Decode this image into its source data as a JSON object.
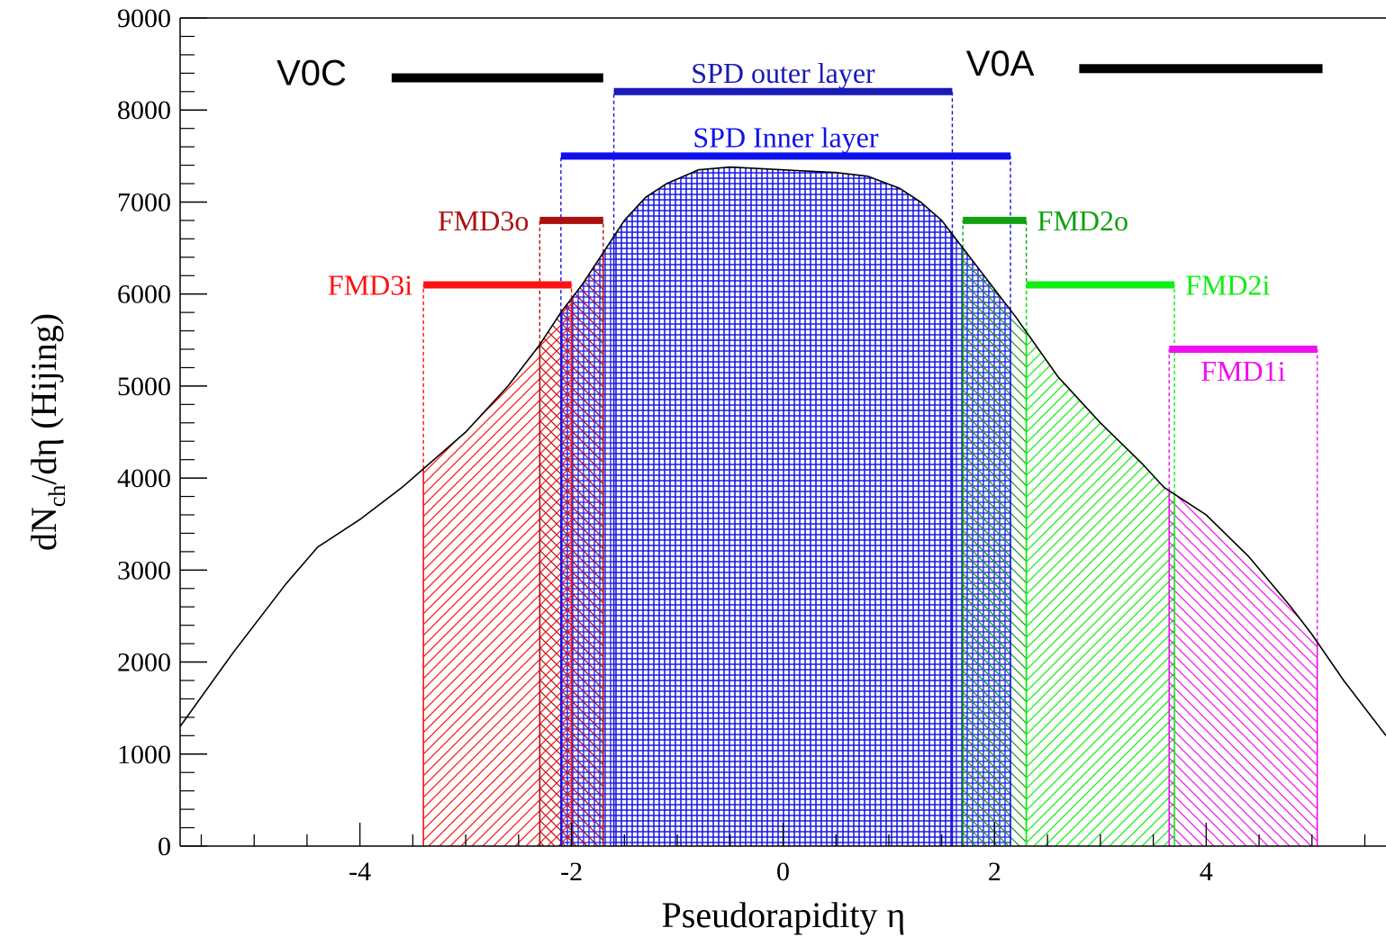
{
  "chart_data": {
    "type": "area",
    "xlabel": "Pseudorapidity η",
    "ylabel_main": "dN",
    "ylabel_sub": "ch",
    "ylabel_rest": "/dη (Hijing)",
    "xlim": [
      -5.7,
      5.7
    ],
    "ylim": [
      0,
      9000
    ],
    "x_ticks": [
      -4,
      -2,
      0,
      2,
      4
    ],
    "x_tick_labels": [
      "-4",
      "-2",
      "0",
      "2",
      "4"
    ],
    "y_ticks": [
      0,
      1000,
      2000,
      3000,
      4000,
      5000,
      6000,
      7000,
      8000,
      9000
    ],
    "y_tick_labels": [
      "0",
      "1000",
      "2000",
      "3000",
      "4000",
      "5000",
      "6000",
      "7000",
      "8000",
      "9000"
    ],
    "grid": false,
    "curve": {
      "x": [
        -5.7,
        -5.2,
        -4.7,
        -4.4,
        -4.0,
        -3.6,
        -3.4,
        -3.0,
        -2.6,
        -2.3,
        -2.1,
        -1.9,
        -1.7,
        -1.5,
        -1.3,
        -1.1,
        -0.8,
        -0.5,
        0.0,
        0.5,
        0.8,
        1.1,
        1.3,
        1.5,
        1.7,
        1.9,
        2.2,
        2.6,
        3.0,
        3.4,
        3.6,
        3.8,
        4.0,
        4.4,
        4.8,
        5.0,
        5.3,
        5.7
      ],
      "y": [
        1300,
        2100,
        2850,
        3250,
        3550,
        3900,
        4100,
        4500,
        5000,
        5450,
        5800,
        6100,
        6450,
        6800,
        7050,
        7200,
        7350,
        7380,
        7350,
        7320,
        7280,
        7150,
        7000,
        6800,
        6500,
        6200,
        5750,
        5100,
        4600,
        4150,
        3900,
        3750,
        3600,
        3150,
        2600,
        2300,
        1800,
        1200
      ]
    },
    "detectors": [
      {
        "name": "SPD outer layer",
        "eta_min": -1.6,
        "eta_max": 1.6,
        "y": 8200,
        "color": "#1a1ab8",
        "label_pos": "above",
        "fill": "grid"
      },
      {
        "name": "SPD Inner layer",
        "eta_min": -2.1,
        "eta_max": 2.15,
        "y": 7500,
        "color": "#1010ee",
        "label_pos": "above",
        "fill": "grid"
      },
      {
        "name": "FMD3o",
        "eta_min": -2.3,
        "eta_max": -1.7,
        "y": 6800,
        "color": "#aa1111",
        "label_pos": "left",
        "fill": "hatch-back"
      },
      {
        "name": "FMD3i",
        "eta_min": -3.4,
        "eta_max": -2.0,
        "y": 6100,
        "color": "#ff1111",
        "label_pos": "left",
        "fill": "hatch-fwd"
      },
      {
        "name": "FMD2o",
        "eta_min": 1.7,
        "eta_max": 2.3,
        "y": 6800,
        "color": "#11a011",
        "label_pos": "right",
        "fill": "hatch-back"
      },
      {
        "name": "FMD2i",
        "eta_min": 2.3,
        "eta_max": 3.7,
        "y": 6100,
        "color": "#11ee11",
        "label_pos": "right",
        "fill": "hatch-fwd"
      },
      {
        "name": "FMD1i",
        "eta_min": 3.65,
        "eta_max": 5.05,
        "y": 5400,
        "color": "#ee11ee",
        "label_pos": "below",
        "fill": "hatch-back"
      }
    ],
    "v0": [
      {
        "name": "V0C",
        "eta_min": -3.7,
        "eta_max": -1.7,
        "y": 8350,
        "color": "#000000"
      },
      {
        "name": "V0A",
        "eta_min": 2.8,
        "eta_max": 5.1,
        "y": 8450,
        "color": "#000000"
      }
    ]
  }
}
